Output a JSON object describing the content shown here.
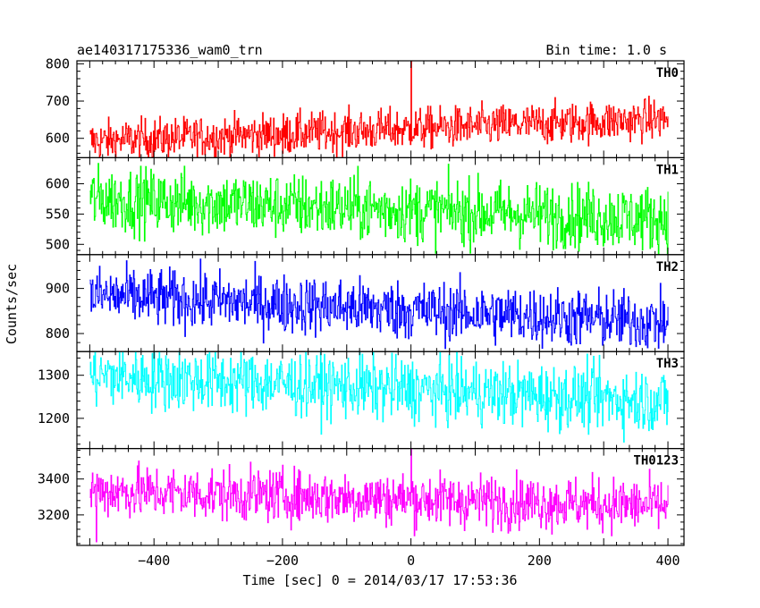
{
  "header": {
    "title": "ae140317175336_wam0_trn",
    "bin_time": "Bin time: 1.0 s"
  },
  "chart_data": {
    "type": "line",
    "title": "ae140317175336_wam0_trn",
    "subtitle": "Bin time: 1.0 s",
    "xlabel": "Time [sec] 0 = 2014/03/17 17:53:36",
    "ylabel": "Counts/sec",
    "xlim": [
      -520,
      425
    ],
    "x_ticks": [
      -400,
      -200,
      0,
      200,
      400
    ],
    "x_tick_labels": [
      "−400",
      "−200",
      "0",
      "200",
      "400"
    ],
    "time_range": [
      -500,
      400
    ],
    "bin_time_sec": 1.0,
    "grid": false,
    "panels": [
      {
        "name": "TH0",
        "color": "#ff0000",
        "ylim": [
          548,
          808
        ],
        "y_ticks": [
          600,
          700,
          800
        ],
        "y_tick_labels": [
          "600",
          "700",
          "800"
        ],
        "trend_start": 592,
        "trend_end": 652,
        "noise_amplitude": 28,
        "spikes": [
          {
            "x": 0,
            "y": 808
          },
          {
            "x": -200,
            "y": 560
          }
        ]
      },
      {
        "name": "TH1",
        "color": "#00ff00",
        "ylim": [
          483,
          643
        ],
        "y_ticks": [
          500,
          550,
          600
        ],
        "y_tick_labels": [
          "500",
          "550",
          "600"
        ],
        "trend_start": 575,
        "trend_end": 542,
        "noise_amplitude": 27,
        "spikes": []
      },
      {
        "name": "TH2",
        "color": "#0000ff",
        "ylim": [
          760,
          975
        ],
        "y_ticks": [
          800,
          900
        ],
        "y_tick_labels": [
          "800",
          "900"
        ],
        "trend_start": 885,
        "trend_end": 825,
        "noise_amplitude": 33,
        "spikes": []
      },
      {
        "name": "TH3",
        "color": "#00ffff",
        "ylim": [
          1130,
          1355
        ],
        "y_ticks": [
          1200,
          1300
        ],
        "y_tick_labels": [
          "1200",
          "1300"
        ],
        "trend_start": 1300,
        "trend_end": 1240,
        "noise_amplitude": 38,
        "spikes": []
      },
      {
        "name": "TH0123",
        "color": "#ff00ff",
        "ylim": [
          3030,
          3570
        ],
        "y_ticks": [
          3200,
          3400
        ],
        "y_tick_labels": [
          "3200",
          "3400"
        ],
        "trend_start": 3335,
        "trend_end": 3250,
        "noise_amplitude": 75,
        "spikes": [
          {
            "x": 0,
            "y": 3570
          },
          {
            "x": -490,
            "y": 3050
          }
        ]
      }
    ]
  }
}
